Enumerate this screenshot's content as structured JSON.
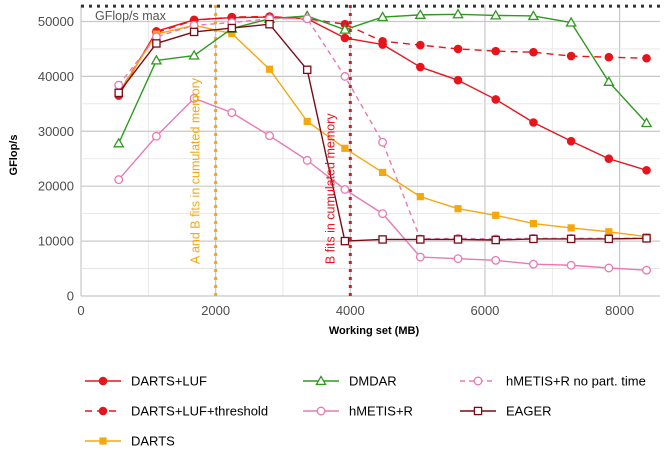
{
  "chart_data": {
    "type": "line",
    "xlabel": "Working set (MB)",
    "ylabel": "GFlop/s",
    "xlim": [
      0,
      8600
    ],
    "ylim": [
      0,
      53000
    ],
    "x_ticks": [
      0,
      2000,
      4000,
      6000,
      8000
    ],
    "y_ticks": [
      0,
      10000,
      20000,
      30000,
      40000,
      50000
    ],
    "x_tick_labels": [
      "0",
      "2000",
      "4000",
      "6000",
      "8000"
    ],
    "y_tick_labels": [
      "0",
      "10000",
      "20000",
      "30000",
      "40000",
      "50000"
    ],
    "grid": true,
    "legend_position": "bottom",
    "colors": {
      "red": "#e8141c",
      "orange": "#f5a70e",
      "green": "#2e9a1e",
      "pink": "#e879b4",
      "darkred": "#7a0b16",
      "grid": "#c8c8c8",
      "reference": "#333333"
    },
    "reference_lines": [
      {
        "orientation": "horizontal",
        "value": 52800,
        "label": "GFlop/s max",
        "color": "#333333",
        "style": "dotted"
      },
      {
        "orientation": "vertical",
        "value": 2000,
        "label": "A and B fits in cumulated memory",
        "color": "#f5a70e",
        "style": "dotted"
      },
      {
        "orientation": "vertical",
        "value": 4000,
        "label": "B fits in cumulated memory",
        "color": "#e8141c",
        "style": "dotted"
      }
    ],
    "series": [
      {
        "name": "DARTS+LUF",
        "color": "#e8141c",
        "dash": "",
        "marker": "circle-filled",
        "x": [
          560,
          1120,
          1680,
          2240,
          2800,
          3360,
          3920,
          4480,
          5040,
          5600,
          6160,
          6720,
          7280,
          7840,
          8400
        ],
        "y": [
          36500,
          48200,
          50300,
          50700,
          50800,
          50500,
          47000,
          45800,
          41700,
          39300,
          35800,
          31600,
          28200,
          25000,
          22900
        ]
      },
      {
        "name": "DARTS+LUF+threshold",
        "color": "#e8141c",
        "dash": "7,5",
        "marker": "circle-filled",
        "x": [
          560,
          1120,
          1680,
          2240,
          2800,
          3360,
          3920,
          4480,
          5040,
          5600,
          6160,
          6720,
          7280,
          7840,
          8400
        ],
        "y": [
          37000,
          48000,
          50200,
          50800,
          50900,
          50500,
          49500,
          46400,
          45700,
          45000,
          44600,
          44400,
          43700,
          43500,
          43300
        ]
      },
      {
        "name": "DARTS",
        "color": "#f5a70e",
        "dash": "",
        "marker": "square-filled",
        "x": [
          560,
          1120,
          1680,
          2240,
          2800,
          3360,
          3920,
          4480,
          5040,
          5600,
          6160,
          6720,
          7280,
          7840,
          8400
        ],
        "y": [
          37000,
          47700,
          49300,
          47800,
          41300,
          31800,
          26900,
          22500,
          18100,
          15900,
          14700,
          13200,
          12400,
          11700,
          10800
        ]
      },
      {
        "name": "DMDAR",
        "color": "#2e9a1e",
        "dash": "",
        "marker": "triangle-open",
        "x": [
          560,
          1120,
          1680,
          2240,
          2800,
          3360,
          3920,
          4480,
          5040,
          5600,
          6160,
          6720,
          7280,
          7840,
          8400
        ],
        "y": [
          27800,
          42900,
          43800,
          48700,
          50500,
          51000,
          48500,
          50800,
          51200,
          51300,
          51100,
          51000,
          49800,
          39000,
          31500
        ]
      },
      {
        "name": "hMETIS+R",
        "color": "#e879b4",
        "dash": "",
        "marker": "circle-open",
        "x": [
          560,
          1120,
          1680,
          2240,
          2800,
          3360,
          3920,
          4480,
          5040,
          5600,
          6160,
          6720,
          7280,
          7840,
          8400
        ],
        "y": [
          21200,
          29100,
          36000,
          33400,
          29200,
          24700,
          19400,
          15000,
          7100,
          6800,
          6500,
          5800,
          5600,
          5100,
          4700
        ]
      },
      {
        "name": "hMETIS+R no part. time",
        "color": "#e879b4",
        "dash": "5,4",
        "marker": "circle-open",
        "x": [
          560,
          1120,
          1680,
          2240,
          2800,
          3360,
          3920,
          4480,
          5040,
          5600,
          6160,
          6720,
          7280,
          7840,
          8400
        ],
        "y": [
          38400,
          47200,
          49300,
          49800,
          50500,
          50500,
          40000,
          28000,
          10400,
          10500,
          10400,
          10500,
          10500,
          10500,
          10500
        ]
      },
      {
        "name": "EAGER",
        "color": "#7a0b16",
        "dash": "",
        "marker": "square-open",
        "x": [
          560,
          1120,
          1680,
          2240,
          2800,
          3360,
          3920,
          4480,
          5040,
          5600,
          6160,
          6720,
          7280,
          7840,
          8400
        ],
        "y": [
          37000,
          46000,
          48100,
          48800,
          49500,
          41200,
          10000,
          10300,
          10300,
          10300,
          10200,
          10400,
          10400,
          10400,
          10500
        ]
      }
    ]
  }
}
